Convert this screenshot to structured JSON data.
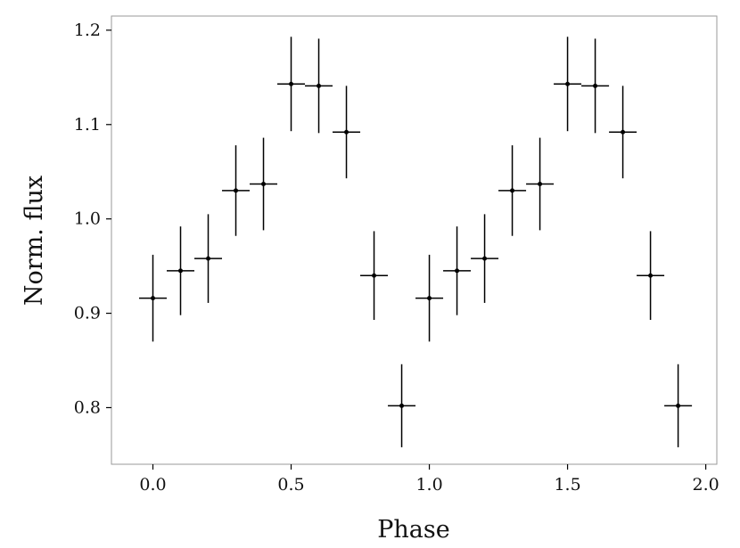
{
  "chart_data": {
    "type": "scatter",
    "title": "",
    "xlabel": "Phase",
    "ylabel": "Norm. flux",
    "xlim": [
      -0.15,
      2.04
    ],
    "ylim": [
      0.74,
      1.215
    ],
    "x_ticks": [
      0.0,
      0.5,
      1.0,
      1.5,
      2.0
    ],
    "x_tick_labels": [
      "0.0",
      "0.5",
      "1.0",
      "1.5",
      "2.0"
    ],
    "y_ticks": [
      0.8,
      0.9,
      1.0,
      1.1,
      1.2
    ],
    "y_tick_labels": [
      "0.8",
      "0.9",
      "1.0",
      "1.1",
      "1.2"
    ],
    "grid": false,
    "legend": "none",
    "x_error_halfwidth": 0.05,
    "series": [
      {
        "x": [
          0.0,
          0.1,
          0.2,
          0.3,
          0.4,
          0.5,
          0.6,
          0.7,
          0.8,
          0.9,
          1.0,
          1.1,
          1.2,
          1.3,
          1.4,
          1.5,
          1.6,
          1.7,
          1.8,
          1.9
        ],
        "y": [
          0.916,
          0.945,
          0.958,
          1.03,
          1.037,
          1.143,
          1.141,
          1.092,
          0.94,
          0.802,
          0.916,
          0.945,
          0.958,
          1.03,
          1.037,
          1.143,
          1.141,
          1.092,
          0.94,
          0.802
        ],
        "y_err": [
          0.046,
          0.047,
          0.047,
          0.048,
          0.049,
          0.05,
          0.05,
          0.049,
          0.047,
          0.044,
          0.046,
          0.047,
          0.047,
          0.048,
          0.049,
          0.05,
          0.05,
          0.049,
          0.047,
          0.044
        ]
      }
    ],
    "colors": {
      "marker": "#000000",
      "axis": "#9a9a9a",
      "tick": "#000000"
    }
  }
}
